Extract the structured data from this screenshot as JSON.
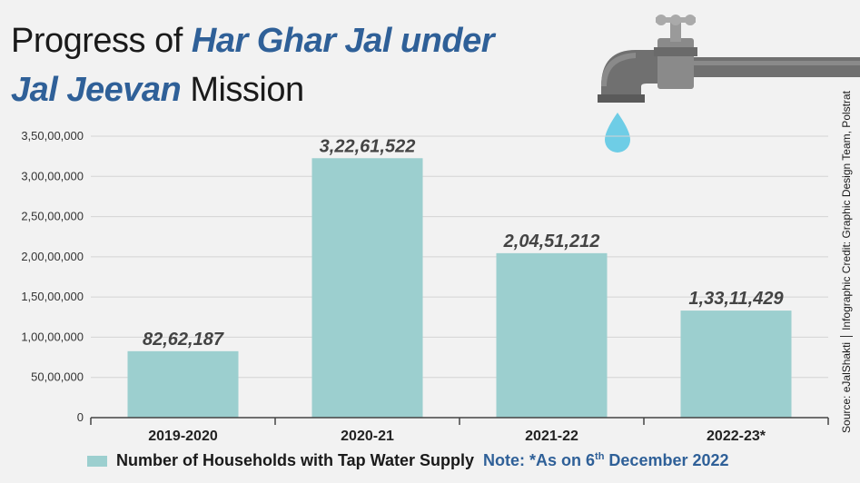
{
  "title": {
    "part1": "Progress of ",
    "highlight1": "Har Ghar Jal under",
    "highlight2": "Jal Jeevan",
    "part2": " Mission"
  },
  "credits": {
    "source": "Source: eJalShakti",
    "credit": "Infographic Credit: Graphic Design Team, Polstrat"
  },
  "legend": {
    "label": "Number of Households with Tap Water Supply",
    "note_prefix": "Note: *As on 6",
    "note_sup": "th",
    "note_suffix": " December 2022"
  },
  "colors": {
    "bar": "#9ccfcf",
    "title_highlight": "#2f6098",
    "drop": "#6ecde6",
    "tap": "#707070"
  },
  "chart_data": {
    "type": "bar",
    "title": "Progress of Har Ghar Jal under Jal Jeevan Mission",
    "xlabel": "",
    "ylabel": "",
    "categories": [
      "2019-2020",
      "2020-21",
      "2021-22",
      "2022-23*"
    ],
    "values": [
      8262187,
      32261522,
      20451212,
      13311429
    ],
    "value_labels": [
      "82,62,187",
      "3,22,61,522",
      "2,04,51,212",
      "1,33,11,429"
    ],
    "ylim": [
      0,
      35000000
    ],
    "yticks": [
      0,
      5000000,
      10000000,
      15000000,
      20000000,
      25000000,
      30000000,
      35000000
    ],
    "ytick_labels": [
      "0",
      "50,00,000",
      "1,00,00,000",
      "1,50,00,000",
      "2,00,00,000",
      "2,50,00,000",
      "3,00,00,000",
      "3,50,00,000"
    ],
    "grid": true,
    "series": [
      {
        "name": "Number of Households with Tap Water Supply",
        "values": [
          8262187,
          32261522,
          20451212,
          13311429
        ]
      }
    ]
  }
}
